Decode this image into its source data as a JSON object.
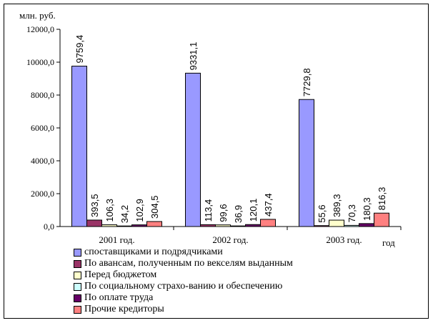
{
  "chart_data": {
    "type": "bar",
    "ylabel": "млн. руб.",
    "xlabel": "год",
    "categories": [
      "2001 год.",
      "2002 год.",
      "2003 год."
    ],
    "ylim": [
      0,
      12000
    ],
    "yticks": [
      "0,0",
      "2000,0",
      "4000,0",
      "6000,0",
      "8000,0",
      "10000,0",
      "12000,0"
    ],
    "grid": false,
    "legend_position": "bottom",
    "series": [
      {
        "name": "споставщиками  и подрядчиками",
        "color": "#9999ff",
        "values": [
          9759.4,
          9331.1,
          7729.8
        ],
        "labels": [
          "9759,4",
          "9331,1",
          "7729,8"
        ]
      },
      {
        "name": "По авансам, полученным по векселям выданным",
        "color": "#993366",
        "values": [
          393.5,
          113.4,
          55.6
        ],
        "labels": [
          "393,5",
          "113,4",
          "55,6"
        ]
      },
      {
        "name": "Перед бюджетом",
        "color": "#ffffcc",
        "values": [
          106.3,
          99.6,
          389.3
        ],
        "labels": [
          "106,3",
          "99,6",
          "389,3"
        ]
      },
      {
        "name": "По социальному страхо-ванию и обеспечению",
        "color": "#ccffff",
        "values": [
          34.2,
          36.9,
          70.3
        ],
        "labels": [
          "34,2",
          "36,9",
          "70,3"
        ]
      },
      {
        "name": "По оплате труда",
        "color": "#660066",
        "values": [
          102.9,
          120.1,
          180.3
        ],
        "labels": [
          "102,9",
          "120,1",
          "180,3"
        ]
      },
      {
        "name": "Прочие кредиторы",
        "color": "#ff8080",
        "values": [
          304.5,
          437.4,
          816.3
        ],
        "labels": [
          "304,5",
          "437,4",
          "816,3"
        ]
      }
    ]
  }
}
